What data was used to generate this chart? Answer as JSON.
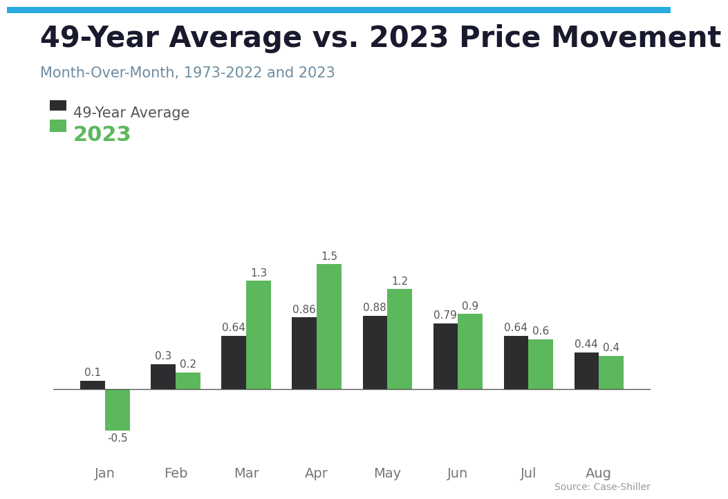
{
  "title": "49-Year Average vs. 2023 Price Movement",
  "subtitle": "Month-Over-Month, 1973-2022 and 2023",
  "categories": [
    "Jan",
    "Feb",
    "Mar",
    "Apr",
    "May",
    "Jun",
    "Jul",
    "Aug"
  ],
  "avg_values": [
    0.1,
    0.3,
    0.64,
    0.86,
    0.88,
    0.79,
    0.64,
    0.44
  ],
  "year2023_values": [
    -0.5,
    0.2,
    1.3,
    1.5,
    1.2,
    0.9,
    0.6,
    0.4
  ],
  "avg_color": "#2b2d2f",
  "year2023_color": "#5cb85c",
  "legend_avg_label": "49-Year Average",
  "legend_2023_label": "2023",
  "source_text": "Source: Case-Shiller",
  "top_bar_color": "#29abe2",
  "top_bar_height": 0.012,
  "background_color": "#ffffff",
  "title_fontsize": 30,
  "subtitle_fontsize": 15,
  "label_fontsize": 11,
  "bar_width": 0.35,
  "ylim_min": -0.85,
  "ylim_max": 1.9,
  "legend_avg_color": "#555555",
  "legend_2023_color": "#5cb85c",
  "data_label_color": "#555555"
}
